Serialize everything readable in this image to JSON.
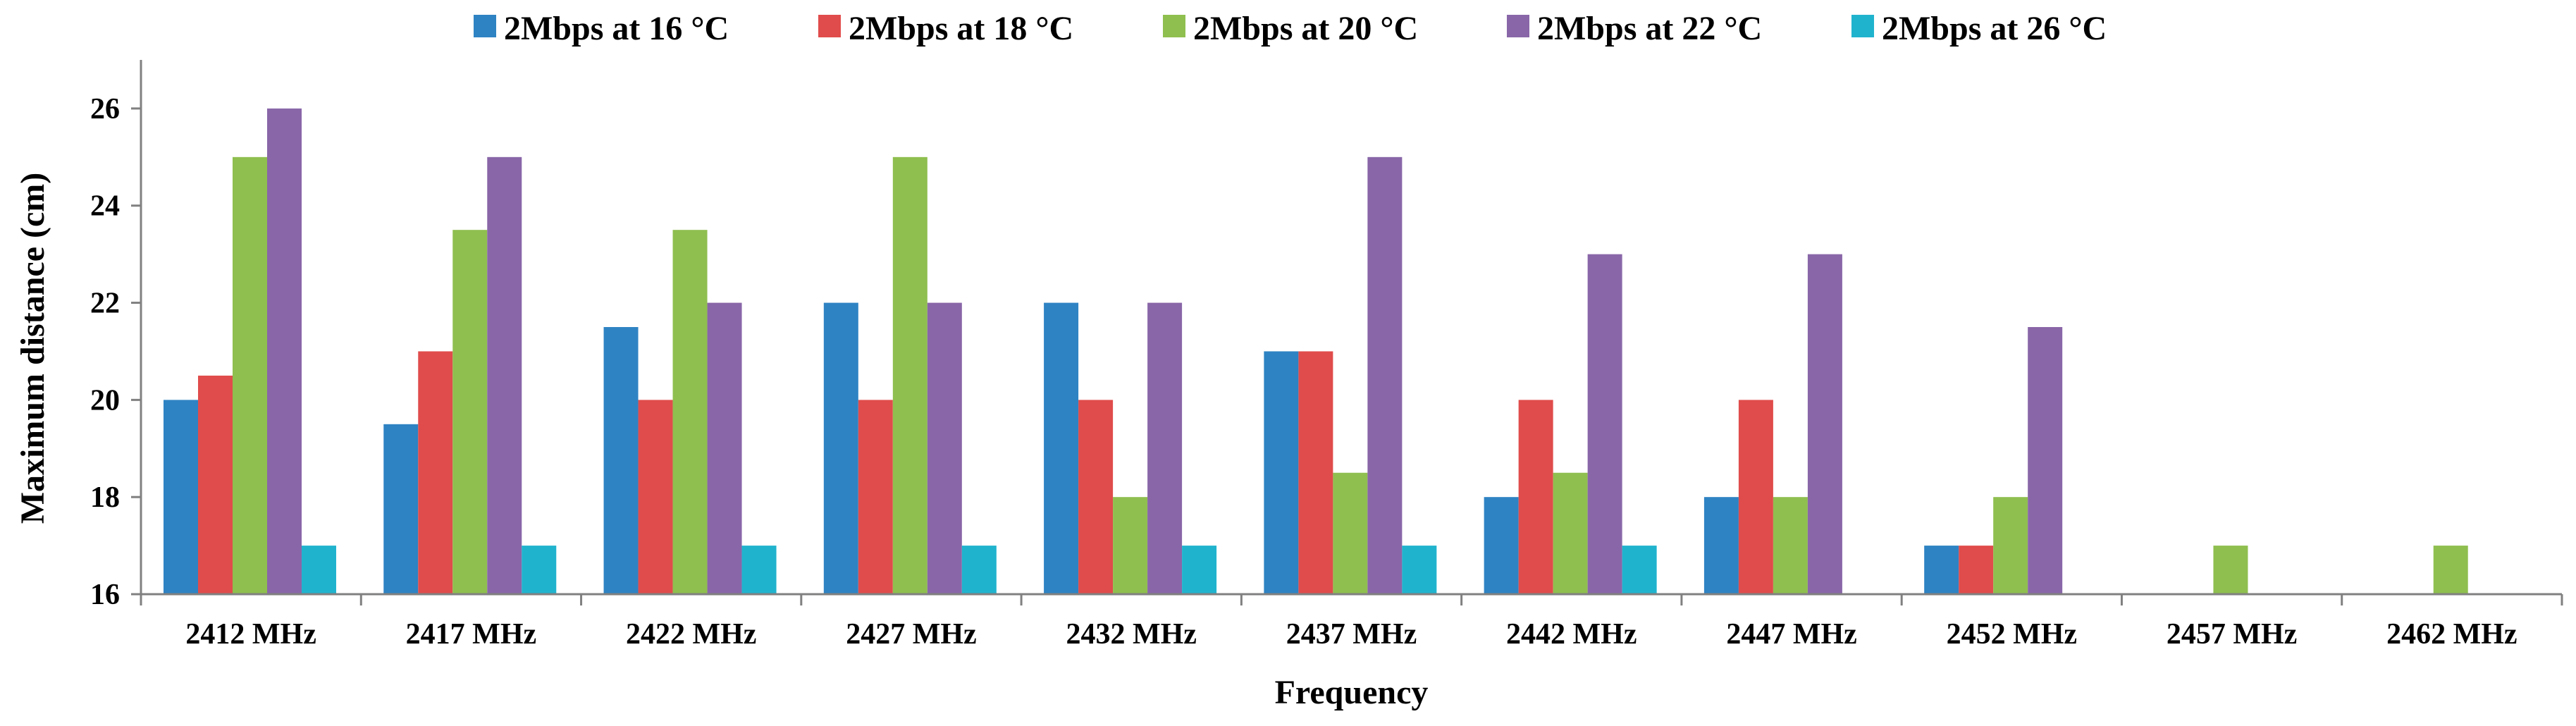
{
  "chart_data": {
    "type": "bar",
    "title": "",
    "xlabel": "Frequency",
    "ylabel": "Maximum distance (cm)",
    "ylim": [
      16,
      27
    ],
    "yticks": [
      "16",
      "18",
      "20",
      "22",
      "24",
      "26"
    ],
    "grid": false,
    "legend_position": "top",
    "categories": [
      "2412 MHz",
      "2417 MHz",
      "2422 MHz",
      "2427 MHz",
      "2432 MHz",
      "2437 MHz",
      "2442 MHz",
      "2447 MHz",
      "2452 MHz",
      "2457 MHz",
      "2462 MHz"
    ],
    "series": [
      {
        "name": "2Mbps at 16 °C",
        "color": "#2E83C3",
        "values": [
          20,
          19.5,
          21.5,
          22,
          22,
          21,
          18,
          18,
          17,
          null,
          null
        ]
      },
      {
        "name": "2Mbps at 18 °C",
        "color": "#E04C4B",
        "values": [
          20.5,
          21,
          20,
          20,
          20,
          21,
          20,
          20,
          17,
          null,
          null
        ]
      },
      {
        "name": "2Mbps at 20 °C",
        "color": "#8FBF4F",
        "values": [
          25,
          23.5,
          23.5,
          25,
          18,
          18.5,
          18.5,
          18,
          18,
          17,
          17
        ]
      },
      {
        "name": "2Mbps at 22 °C",
        "color": "#8966A8",
        "values": [
          26,
          25,
          22,
          22,
          22,
          25,
          23,
          23,
          21.5,
          null,
          null
        ]
      },
      {
        "name": "2Mbps at 26 °C",
        "color": "#20B3CE",
        "values": [
          17,
          17,
          17,
          17,
          17,
          17,
          17,
          null,
          null,
          null,
          null
        ]
      }
    ]
  }
}
